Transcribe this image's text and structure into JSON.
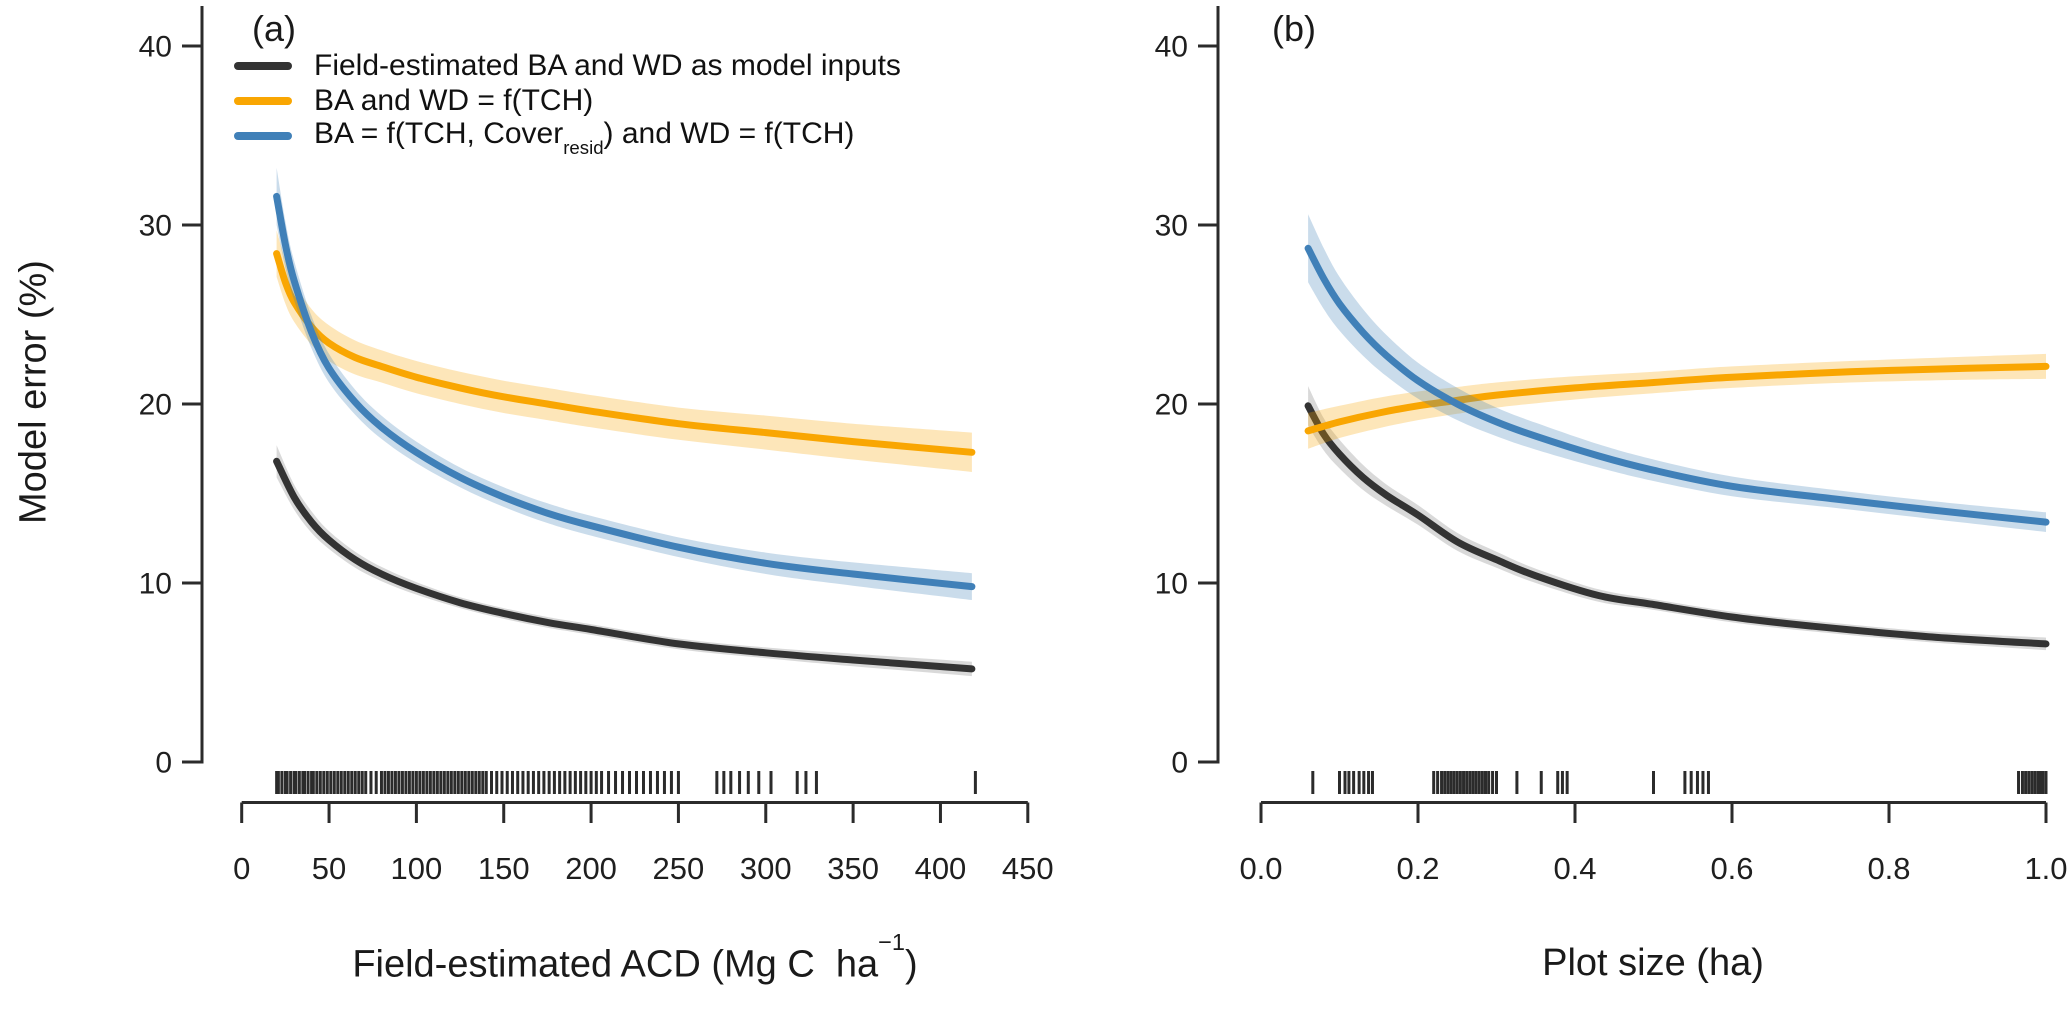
{
  "y_axis": {
    "label": "Model error (%)"
  },
  "legend": {
    "entries": [
      {
        "label": "Field-estimated BA and WD as model inputs",
        "color": "#333333"
      },
      {
        "label": "BA and WD = f(TCH)",
        "color": "#F9A602"
      },
      {
        "prefix": "BA = f(TCH, Cover",
        "sub": "resid",
        "suffix": ") and WD = f(TCH)",
        "color": "#4080B8"
      }
    ]
  },
  "chart_data": [
    {
      "type": "line",
      "panel_label": "(a)",
      "x_label_main": "Field-estimated ACD (Mg C  ha",
      "x_label_sup": "−1",
      "x_label_close": ")",
      "xlabel": "Field-estimated ACD (Mg C ha^-1)",
      "ylabel": "Model error (%)",
      "xlim": [
        0,
        450
      ],
      "ylim": [
        0,
        40
      ],
      "x_ticks": {
        "values": [
          0,
          50,
          100,
          150,
          200,
          250,
          300,
          350,
          400,
          450
        ],
        "labels": [
          "0",
          "50",
          "100",
          "150",
          "200",
          "250",
          "300",
          "350",
          "400",
          "450"
        ]
      },
      "y_ticks": {
        "values": [
          0,
          10,
          20,
          30,
          40
        ],
        "labels": [
          "0",
          "10",
          "20",
          "30",
          "40"
        ]
      },
      "series": [
        {
          "name": "Field-estimated BA and WD as model inputs",
          "color": "#333333",
          "band_color": "rgba(120,120,120,0.28)",
          "x": [
            20,
            30,
            40,
            50,
            65,
            80,
            100,
            125,
            150,
            175,
            200,
            250,
            300,
            350,
            418
          ],
          "y": [
            16.8,
            14.8,
            13.4,
            12.4,
            11.3,
            10.5,
            9.7,
            8.9,
            8.3,
            7.8,
            7.4,
            6.6,
            6.1,
            5.7,
            5.2
          ],
          "band": [
            0.9,
            0.7,
            0.6,
            0.5,
            0.45,
            0.4,
            0.35,
            0.3,
            0.3,
            0.3,
            0.3,
            0.3,
            0.3,
            0.35,
            0.4
          ]
        },
        {
          "name": "BA and WD = f(TCH)",
          "color": "#F9A602",
          "band_color": "rgba(249,166,2,0.28)",
          "x": [
            20,
            25,
            30,
            40,
            50,
            65,
            80,
            100,
            125,
            150,
            175,
            200,
            250,
            300,
            350,
            418
          ],
          "y": [
            28.4,
            26.8,
            25.7,
            24.3,
            23.4,
            22.6,
            22.1,
            21.5,
            20.9,
            20.4,
            20.0,
            19.6,
            18.9,
            18.4,
            17.9,
            17.3
          ],
          "band": [
            1.3,
            1.2,
            1.1,
            1.0,
            1.0,
            0.95,
            0.9,
            0.9,
            0.9,
            0.9,
            0.9,
            0.9,
            0.9,
            0.95,
            1.0,
            1.1
          ]
        },
        {
          "name": "BA = f(TCH, Cover_resid) and WD = f(TCH)",
          "color": "#4080B8",
          "band_color": "rgba(64,128,184,0.28)",
          "x": [
            20,
            25,
            30,
            40,
            50,
            65,
            80,
            100,
            125,
            150,
            175,
            200,
            250,
            300,
            350,
            418
          ],
          "y": [
            31.6,
            28.9,
            26.9,
            24.0,
            22.0,
            20.1,
            18.7,
            17.3,
            15.9,
            14.8,
            13.9,
            13.2,
            12.0,
            11.1,
            10.5,
            9.8
          ],
          "band": [
            1.6,
            1.3,
            1.1,
            0.9,
            0.8,
            0.7,
            0.65,
            0.6,
            0.55,
            0.55,
            0.55,
            0.55,
            0.55,
            0.6,
            0.65,
            0.75
          ]
        }
      ],
      "rug": [
        20,
        21,
        23,
        25,
        26,
        28,
        30,
        31,
        33,
        35,
        36,
        38,
        40,
        41,
        43,
        45,
        47,
        49,
        51,
        53,
        55,
        57,
        59,
        61,
        63,
        65,
        67,
        69,
        71,
        74,
        77,
        80,
        82,
        84,
        86,
        88,
        90,
        92,
        94,
        96,
        98,
        100,
        102,
        104,
        106,
        108,
        110,
        112,
        114,
        116,
        118,
        120,
        122,
        124,
        126,
        128,
        130,
        132,
        134,
        136,
        138,
        140,
        143,
        146,
        149,
        152,
        155,
        158,
        161,
        164,
        167,
        170,
        173,
        176,
        179,
        182,
        185,
        188,
        191,
        194,
        197,
        200,
        203,
        206,
        210,
        214,
        218,
        222,
        226,
        230,
        234,
        238,
        242,
        246,
        250,
        272,
        276,
        280,
        285,
        290,
        296,
        303,
        318,
        323,
        329,
        420
      ]
    },
    {
      "type": "line",
      "panel_label": "(b)",
      "x_label": "Plot size (ha)",
      "xlabel": "Plot size (ha)",
      "ylabel": "Model error (%)",
      "xlim": [
        0.0,
        1.0
      ],
      "ylim": [
        0,
        40
      ],
      "x_ticks": {
        "values": [
          0.0,
          0.2,
          0.4,
          0.6,
          0.8,
          1.0
        ],
        "labels": [
          "0.0",
          "0.2",
          "0.4",
          "0.6",
          "0.8",
          "1.0"
        ]
      },
      "y_ticks": {
        "values": [
          0,
          10,
          20,
          30,
          40
        ],
        "labels": [
          "0",
          "10",
          "20",
          "30",
          "40"
        ]
      },
      "series": [
        {
          "name": "Field-estimated BA and WD as model inputs",
          "color": "#333333",
          "band_color": "rgba(120,120,120,0.28)",
          "x": [
            0.06,
            0.08,
            0.1,
            0.13,
            0.16,
            0.2,
            0.25,
            0.3,
            0.35,
            0.43,
            0.5,
            0.6,
            0.7,
            0.85,
            1.0
          ],
          "y": [
            19.9,
            18.3,
            17.2,
            15.9,
            14.9,
            13.8,
            12.3,
            11.3,
            10.4,
            9.3,
            8.8,
            8.1,
            7.6,
            7.0,
            6.6
          ],
          "band": [
            1.1,
            0.9,
            0.8,
            0.7,
            0.6,
            0.55,
            0.5,
            0.45,
            0.4,
            0.35,
            0.3,
            0.3,
            0.3,
            0.3,
            0.35
          ]
        },
        {
          "name": "BA and WD = f(TCH)",
          "color": "#F9A602",
          "band_color": "rgba(249,166,2,0.28)",
          "x": [
            0.06,
            0.1,
            0.15,
            0.2,
            0.25,
            0.3,
            0.4,
            0.5,
            0.6,
            0.75,
            0.9,
            1.0
          ],
          "y": [
            18.5,
            19.0,
            19.5,
            19.9,
            20.2,
            20.5,
            20.9,
            21.2,
            21.5,
            21.8,
            22.0,
            22.1
          ],
          "band": [
            1.0,
            0.9,
            0.85,
            0.8,
            0.75,
            0.7,
            0.65,
            0.6,
            0.6,
            0.6,
            0.65,
            0.7
          ]
        },
        {
          "name": "BA = f(TCH, Cover_resid) and WD = f(TCH)",
          "color": "#4080B8",
          "band_color": "rgba(64,128,184,0.28)",
          "x": [
            0.06,
            0.08,
            0.1,
            0.13,
            0.16,
            0.2,
            0.25,
            0.3,
            0.35,
            0.43,
            0.5,
            0.6,
            0.73,
            0.85,
            1.0
          ],
          "y": [
            28.7,
            27.0,
            25.6,
            24.0,
            22.7,
            21.3,
            20.0,
            19.0,
            18.2,
            17.1,
            16.3,
            15.4,
            14.7,
            14.1,
            13.4
          ],
          "band": [
            1.9,
            1.7,
            1.5,
            1.3,
            1.15,
            1.0,
            0.9,
            0.8,
            0.75,
            0.65,
            0.6,
            0.55,
            0.5,
            0.5,
            0.55
          ]
        }
      ],
      "rug": [
        0.066,
        0.1,
        0.107,
        0.112,
        0.118,
        0.125,
        0.131,
        0.137,
        0.142,
        0.22,
        0.225,
        0.23,
        0.234,
        0.238,
        0.242,
        0.246,
        0.25,
        0.254,
        0.258,
        0.262,
        0.266,
        0.27,
        0.274,
        0.278,
        0.282,
        0.286,
        0.29,
        0.295,
        0.3,
        0.326,
        0.357,
        0.378,
        0.384,
        0.39,
        0.5,
        0.54,
        0.548,
        0.556,
        0.563,
        0.57,
        0.965,
        0.97,
        0.974,
        0.978,
        0.982,
        0.986,
        0.99,
        0.993,
        0.996,
        1.0
      ]
    }
  ]
}
